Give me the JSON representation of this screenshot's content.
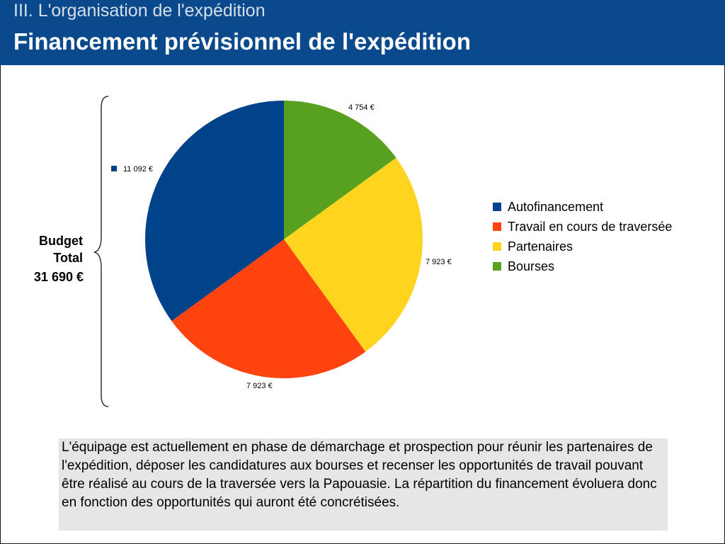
{
  "header": {
    "section_title": "III. L'organisation de l'expédition",
    "main_title": "Financement prévisionnel de l'expédition"
  },
  "budget": {
    "label": "Budget Total",
    "value": "31 690 €"
  },
  "chart_data": {
    "type": "pie",
    "title": "",
    "slices": [
      {
        "label": "Bourses",
        "value": 4754,
        "value_label": "4 754 €",
        "color": "#58a020"
      },
      {
        "label": "Partenaires",
        "value": 7923,
        "value_label": "7 923 €",
        "color": "#ffd41e"
      },
      {
        "label": "Travail en cours de traversée",
        "value": 7923,
        "value_label": "7 923 €",
        "color": "#ff430e"
      },
      {
        "label": "Autofinancement",
        "value": 11092,
        "value_label": "11 092 €",
        "color": "#00438a"
      }
    ],
    "legend": {
      "placement": "right",
      "items": [
        "Autofinancement",
        "Travail en cours de traversée",
        "Partenaires",
        "Bourses"
      ]
    }
  },
  "note": {
    "text": "L'équipage est actuellement en phase de démarchage et prospection pour réunir les partenaires de l'expédition, déposer les candidatures aux bourses et recenser les opportunités de travail pouvant être réalisé au cours de la traversée vers la Papouasie. La répartition du financement évoluera donc en fonction des opportunités qui auront été concrétisées."
  }
}
